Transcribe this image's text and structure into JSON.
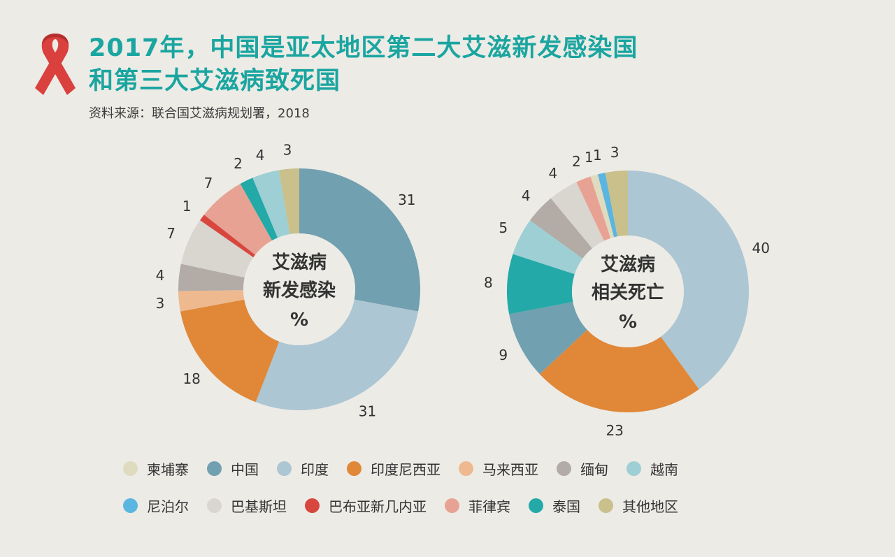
{
  "header": {
    "title_line1": "2017年，中国是亚太地区第二大艾滋新发感染国",
    "title_line2": "和第三大艾滋病致死国",
    "source": "资料来源：联合国艾滋病规划署，2018"
  },
  "colors": {
    "title": "#1aa5a0",
    "ribbon": "#d9403e",
    "background": "#ecebe6"
  },
  "chart_data": [
    {
      "type": "pie",
      "center_label": [
        "艾滋病",
        "新发感染",
        "%"
      ],
      "unit": "%",
      "slices": [
        {
          "name": "中国",
          "value": 31,
          "color": "#71a0b0"
        },
        {
          "name": "印度",
          "value": 31,
          "color": "#adc6d3"
        },
        {
          "name": "印度尼西亚",
          "value": 18,
          "color": "#e08838"
        },
        {
          "name": "马来西亚",
          "value": 3,
          "color": "#eeb98f"
        },
        {
          "name": "缅甸",
          "value": 4,
          "color": "#b2aba6"
        },
        {
          "name": "巴基斯坦",
          "value": 7,
          "color": "#d9d5cf"
        },
        {
          "name": "巴布亚新几内亚",
          "value": 1,
          "color": "#d8473e"
        },
        {
          "name": "菲律宾",
          "value": 7,
          "color": "#e8a293"
        },
        {
          "name": "泰国",
          "value": 2,
          "color": "#23a9a8"
        },
        {
          "name": "越南",
          "value": 4,
          "color": "#9dcfd4"
        },
        {
          "name": "其他地区",
          "value": 3,
          "color": "#c9c08b"
        }
      ]
    },
    {
      "type": "pie",
      "center_label": [
        "艾滋病",
        "相关死亡",
        "%"
      ],
      "unit": "%",
      "slices": [
        {
          "name": "印度",
          "value": 40,
          "color": "#adc6d3"
        },
        {
          "name": "印度尼西亚",
          "value": 23,
          "color": "#e08838"
        },
        {
          "name": "中国",
          "value": 9,
          "color": "#71a0b0"
        },
        {
          "name": "泰国",
          "value": 8,
          "color": "#23a9a8"
        },
        {
          "name": "越南",
          "value": 5,
          "color": "#9dcfd4"
        },
        {
          "name": "缅甸",
          "value": 4,
          "color": "#b2aba6"
        },
        {
          "name": "巴基斯坦",
          "value": 4,
          "color": "#d9d5cf"
        },
        {
          "name": "菲律宾",
          "value": 2,
          "color": "#e8a293"
        },
        {
          "name": "柬埔寨",
          "value": 1,
          "color": "#dedbbf"
        },
        {
          "name": "尼泊尔",
          "value": 1,
          "color": "#5ab6e0"
        },
        {
          "name": "其他地区",
          "value": 3,
          "color": "#c9c08b"
        }
      ]
    }
  ],
  "legend": [
    [
      {
        "label": "柬埔寨",
        "color": "#dedbbf"
      },
      {
        "label": "中国",
        "color": "#71a0b0"
      },
      {
        "label": "印度",
        "color": "#adc6d3"
      },
      {
        "label": "印度尼西亚",
        "color": "#e08838"
      },
      {
        "label": "马来西亚",
        "color": "#eeb98f"
      },
      {
        "label": "缅甸",
        "color": "#b2aba6"
      },
      {
        "label": "越南",
        "color": "#9dcfd4"
      }
    ],
    [
      {
        "label": "尼泊尔",
        "color": "#5ab6e0"
      },
      {
        "label": "巴基斯坦",
        "color": "#d9d5cf"
      },
      {
        "label": "巴布亚新几内亚",
        "color": "#d8473e"
      },
      {
        "label": "菲律宾",
        "color": "#e8a293"
      },
      {
        "label": "泰国",
        "color": "#23a9a8"
      },
      {
        "label": "其他地区",
        "color": "#c9c08b"
      }
    ]
  ]
}
